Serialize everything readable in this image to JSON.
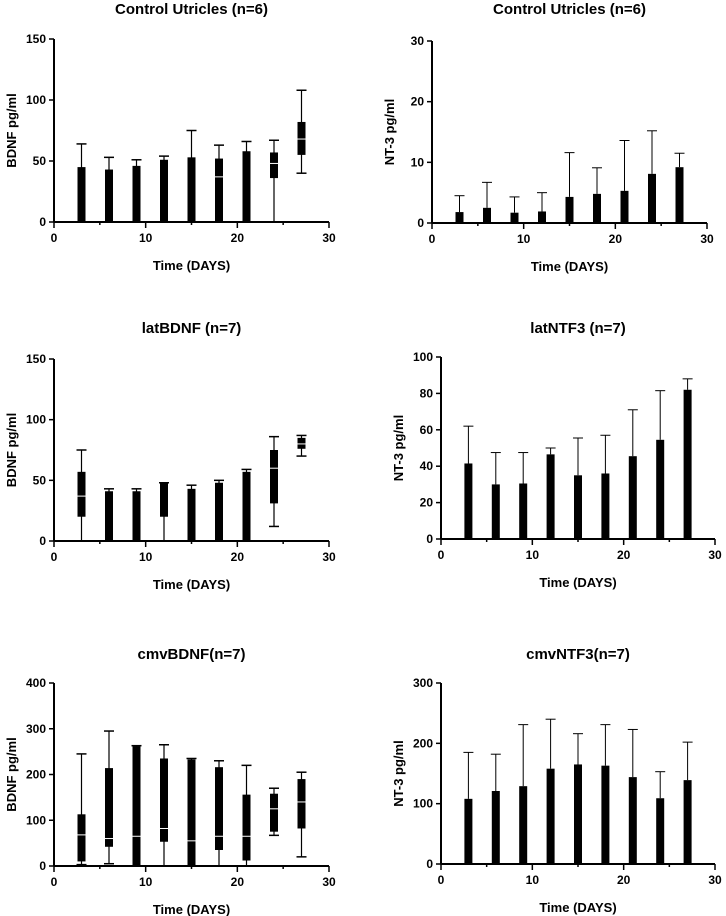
{
  "chart_data": [
    {
      "type": "bar",
      "title": "Control Utricles (n=6)",
      "xlabel": "Time (DAYS)",
      "ylabel": "BDNF pg/ml",
      "xlim": [
        0,
        30
      ],
      "ylim": [
        0,
        150
      ],
      "xticks": [
        0,
        10,
        20,
        30
      ],
      "yticks": [
        0,
        50,
        100,
        150
      ],
      "x": [
        3,
        6,
        9,
        12,
        15,
        18,
        21,
        24,
        27
      ],
      "box_low": [
        0,
        0,
        0,
        0,
        0,
        0,
        0,
        36,
        55
      ],
      "box_high": [
        45,
        43,
        46,
        51,
        53,
        52,
        58,
        57,
        82
      ],
      "median": [
        0,
        0,
        0,
        0,
        0,
        37,
        0,
        48,
        68
      ],
      "whisker_low": [
        0,
        0,
        0,
        0,
        0,
        0,
        0,
        0,
        40
      ],
      "whisker_high": [
        64,
        53,
        51,
        54,
        75,
        63,
        66,
        67,
        108
      ]
    },
    {
      "type": "bar",
      "title": "Control Utricles (n=6)",
      "xlabel": "Time (DAYS)",
      "ylabel": "NT-3 pg/ml",
      "xlim": [
        0,
        30
      ],
      "ylim": [
        0,
        30
      ],
      "xticks": [
        0,
        10,
        20,
        30
      ],
      "yticks": [
        0,
        10,
        20,
        30
      ],
      "x": [
        3,
        6,
        9,
        12,
        15,
        18,
        21,
        24,
        27
      ],
      "values": [
        1.8,
        2.5,
        1.7,
        1.9,
        4.3,
        4.8,
        5.3,
        8.1,
        9.2
      ],
      "error_high": [
        4.5,
        6.7,
        4.3,
        5.0,
        11.6,
        9.1,
        13.6,
        15.2,
        11.5
      ]
    },
    {
      "type": "bar",
      "title": "latBDNF (n=7)",
      "xlabel": "Time (DAYS)",
      "ylabel": "BDNF pg/ml",
      "xlim": [
        0,
        30
      ],
      "ylim": [
        0,
        150
      ],
      "xticks": [
        0,
        10,
        20,
        30
      ],
      "yticks": [
        0,
        50,
        100,
        150
      ],
      "x": [
        3,
        6,
        9,
        12,
        15,
        18,
        21,
        24,
        27
      ],
      "box_low": [
        20,
        0,
        0,
        20,
        0,
        0,
        0,
        31,
        76
      ],
      "box_high": [
        57,
        41,
        41,
        48,
        43,
        48,
        57,
        75,
        85
      ],
      "median": [
        37,
        0,
        0,
        0,
        0,
        0,
        0,
        60,
        80
      ],
      "whisker_low": [
        0,
        0,
        0,
        0,
        0,
        0,
        0,
        12,
        70
      ],
      "whisker_high": [
        75,
        43,
        43,
        48,
        46,
        50,
        59,
        86,
        87
      ]
    },
    {
      "type": "bar",
      "title": "latNTF3 (n=7)",
      "xlabel": "Time (DAYS)",
      "ylabel": "NT-3 pg/ml",
      "xlim": [
        0,
        30
      ],
      "ylim": [
        0,
        100
      ],
      "xticks": [
        0,
        10,
        20,
        30
      ],
      "yticks": [
        0,
        20,
        40,
        60,
        80,
        100
      ],
      "x": [
        3,
        6,
        9,
        12,
        15,
        18,
        21,
        24,
        27
      ],
      "values": [
        41.5,
        30,
        30.5,
        46.5,
        35,
        36,
        45.5,
        54.5,
        82
      ],
      "error_high": [
        62,
        47.5,
        47.5,
        50,
        55.5,
        57,
        71,
        81.5,
        88
      ]
    },
    {
      "type": "bar",
      "title": "cmvBDNF(n=7)",
      "xlabel": "Time (DAYS)",
      "ylabel": "BDNF pg/ml",
      "xlim": [
        0,
        30
      ],
      "ylim": [
        0,
        400
      ],
      "xticks": [
        0,
        10,
        20,
        30
      ],
      "yticks": [
        0,
        100,
        200,
        300,
        400
      ],
      "x": [
        3,
        6,
        9,
        12,
        15,
        18,
        21,
        24,
        27
      ],
      "box_low": [
        10,
        42,
        0,
        53,
        0,
        35,
        12,
        75,
        82
      ],
      "box_high": [
        113,
        214,
        262,
        235,
        233,
        216,
        156,
        158,
        190
      ],
      "median": [
        68,
        60,
        65,
        82,
        55,
        65,
        65,
        125,
        140
      ],
      "whisker_low": [
        3,
        5,
        0,
        0,
        0,
        0,
        0,
        67,
        20
      ],
      "whisker_high": [
        245,
        295,
        263,
        265,
        235,
        230,
        220,
        170,
        205
      ]
    },
    {
      "type": "bar",
      "title": "cmvNTF3(n=7)",
      "xlabel": "Time (DAYS)",
      "ylabel": "NT-3 pg/ml",
      "xlim": [
        0,
        30
      ],
      "ylim": [
        0,
        300
      ],
      "xticks": [
        0,
        10,
        20,
        30
      ],
      "yticks": [
        0,
        100,
        200,
        300
      ],
      "x": [
        3,
        6,
        9,
        12,
        15,
        18,
        21,
        24,
        27
      ],
      "values": [
        108,
        121,
        129,
        158,
        165,
        163,
        144,
        109,
        139
      ],
      "error_high": [
        185,
        182,
        231,
        240,
        216,
        231,
        223,
        153,
        202
      ]
    }
  ]
}
